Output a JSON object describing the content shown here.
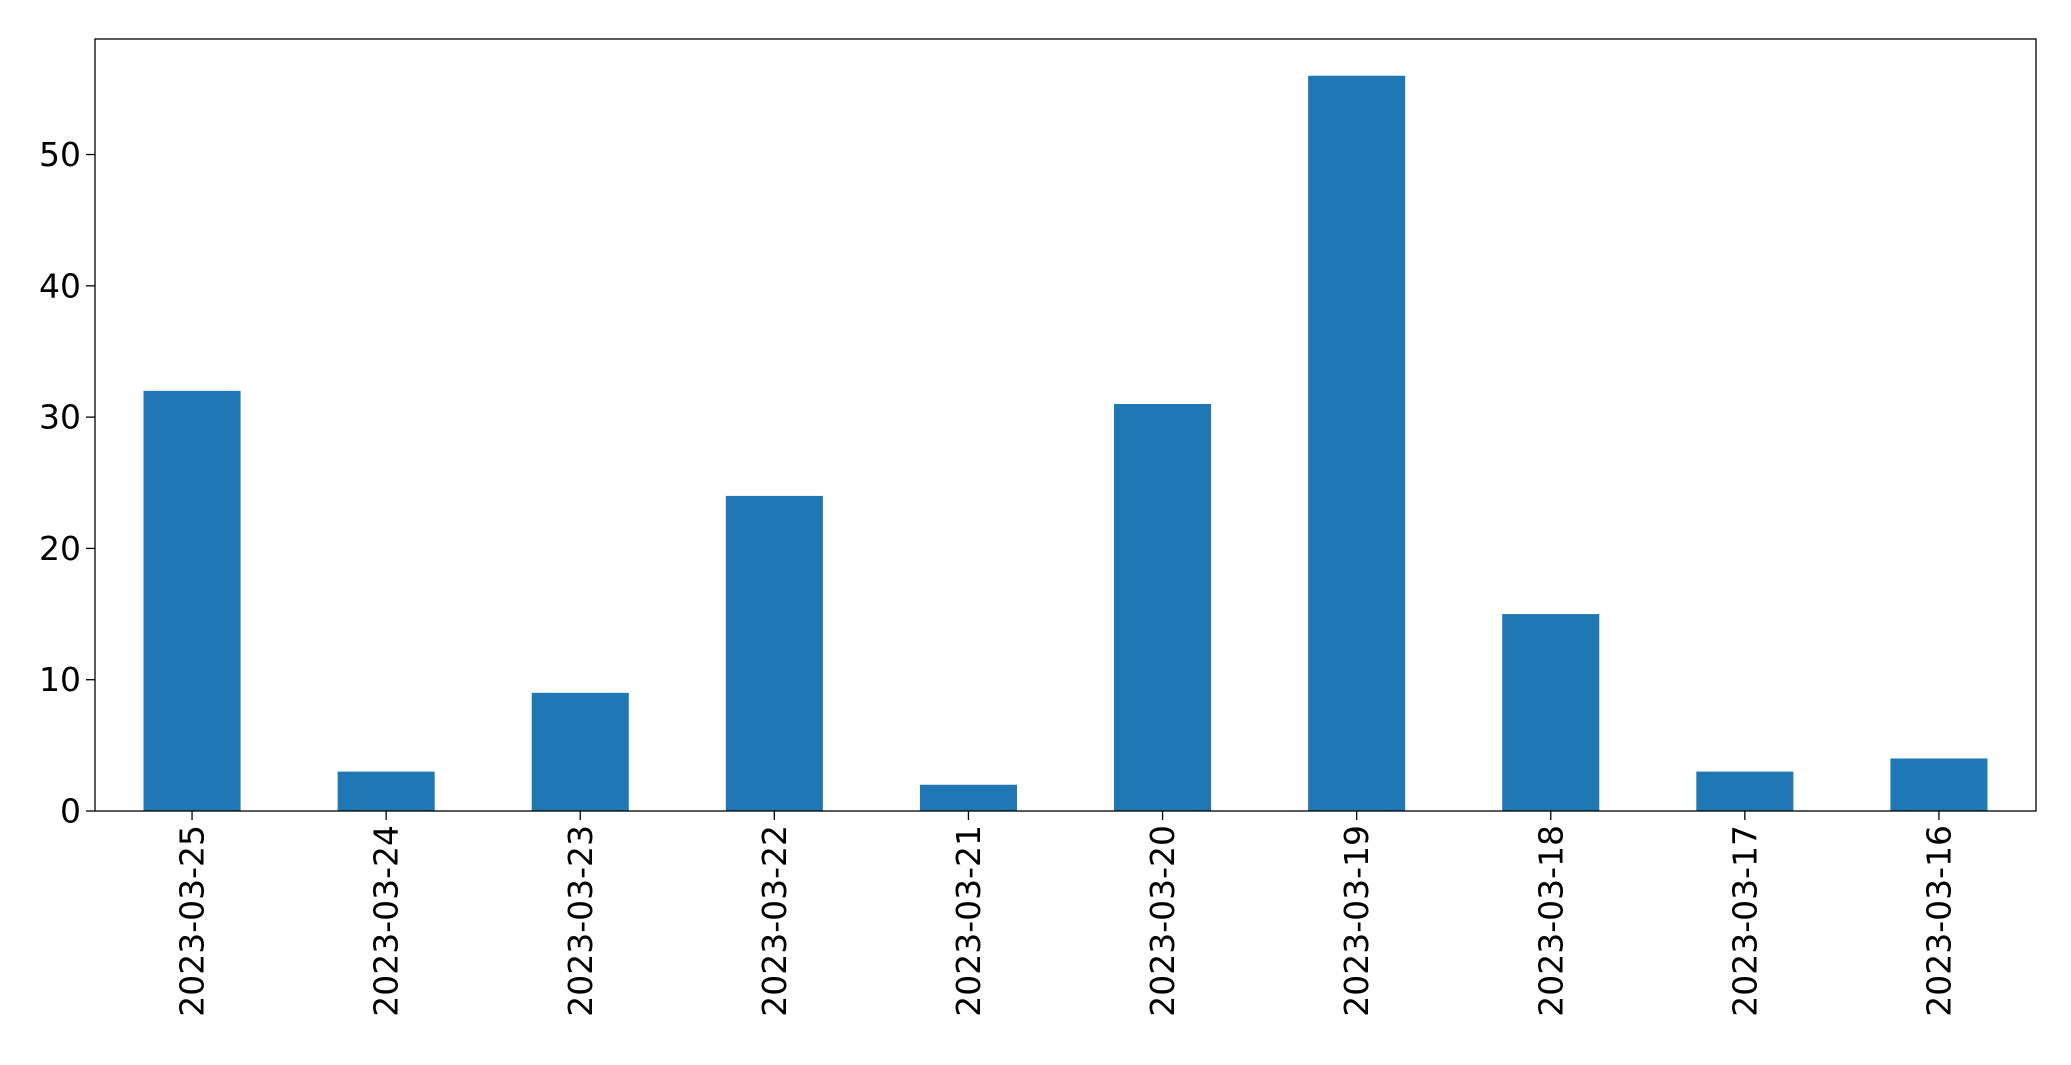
{
  "chart_data": {
    "type": "bar",
    "title": "",
    "xlabel": "",
    "ylabel": "",
    "categories": [
      "2023-03-25",
      "2023-03-24",
      "2023-03-23",
      "2023-03-22",
      "2023-03-21",
      "2023-03-20",
      "2023-03-19",
      "2023-03-18",
      "2023-03-17",
      "2023-03-16"
    ],
    "values": [
      32,
      3,
      9,
      24,
      2,
      31,
      56,
      15,
      3,
      4
    ],
    "ylim": [
      0,
      58.8
    ],
    "yticks": [
      0,
      10,
      20,
      30,
      40,
      50
    ],
    "grid": false,
    "legend": "none",
    "bar_color": "#1f77b4"
  }
}
